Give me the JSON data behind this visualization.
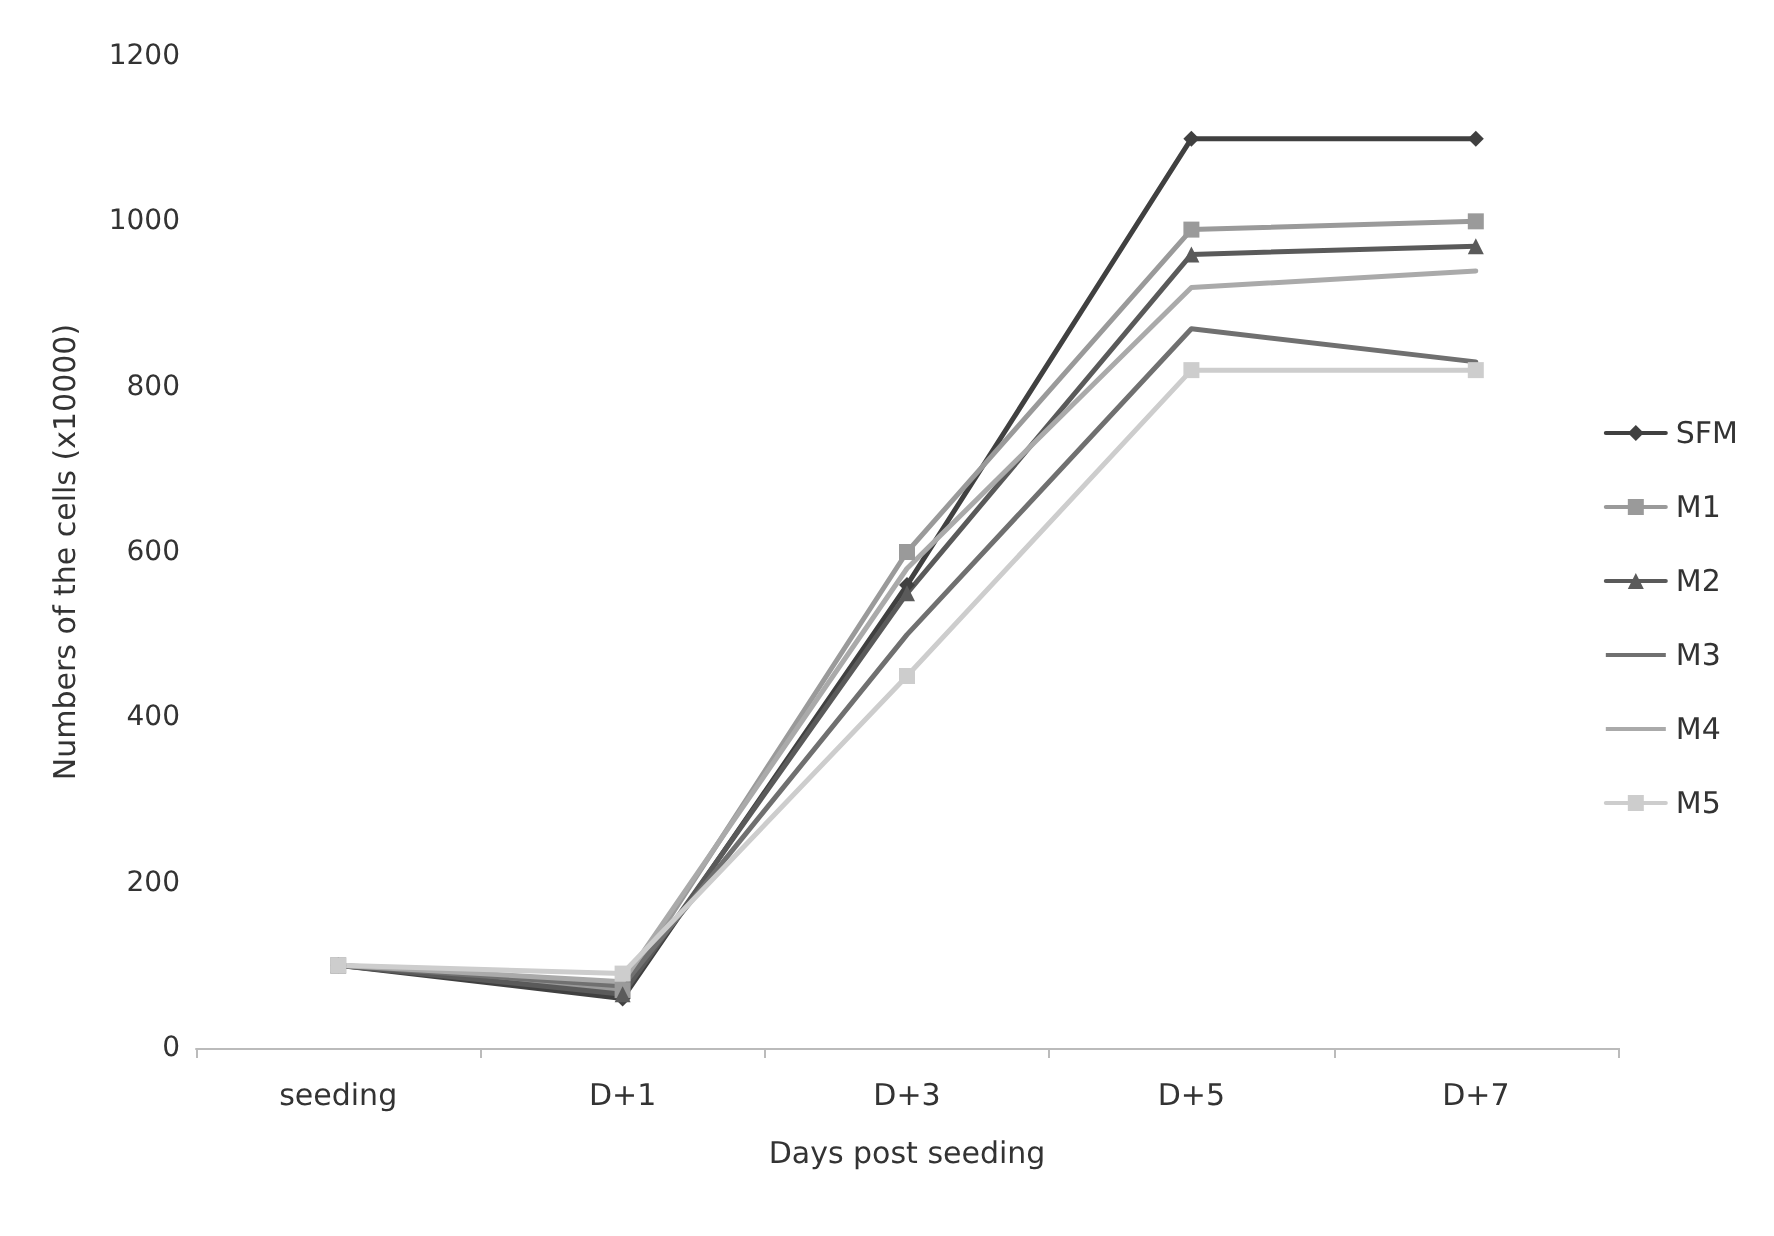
{
  "chart_data": {
    "type": "line",
    "xlabel": "Days post seeding",
    "ylabel": "Numbers of the cells (x10000)",
    "categories": [
      "seeding",
      "D+1",
      "D+3",
      "D+5",
      "D+7"
    ],
    "ylim": [
      0,
      1200
    ],
    "yticks": [
      0,
      200,
      400,
      600,
      800,
      1000,
      1200
    ],
    "grid": false,
    "legend": "right",
    "line_style": "solid",
    "series": [
      {
        "name": "SFM",
        "color": "#404040",
        "marker": "diamond",
        "values": [
          100,
          60,
          560,
          1100,
          1100
        ]
      },
      {
        "name": "M1",
        "color": "#9a9a9a",
        "marker": "square",
        "values": [
          100,
          70,
          600,
          990,
          1000
        ]
      },
      {
        "name": "M2",
        "color": "#5a5a5a",
        "marker": "triangle",
        "values": [
          100,
          65,
          550,
          960,
          970
        ]
      },
      {
        "name": "M3",
        "color": "#707070",
        "marker": "none",
        "values": [
          100,
          75,
          500,
          870,
          830
        ]
      },
      {
        "name": "M4",
        "color": "#aaaaaa",
        "marker": "none",
        "values": [
          100,
          80,
          580,
          920,
          940
        ]
      },
      {
        "name": "M5",
        "color": "#cdcdcd",
        "marker": "square",
        "values": [
          100,
          90,
          450,
          820,
          820
        ]
      }
    ]
  }
}
